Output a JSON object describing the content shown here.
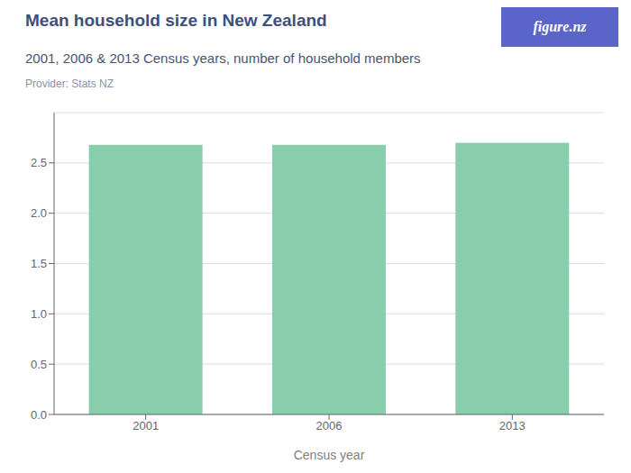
{
  "chart_data": {
    "type": "bar",
    "title": "Mean household size in New Zealand",
    "subtitle": "2001, 2006 & 2013 Census years, number of household members",
    "provider": "Provider: Stats NZ",
    "logo": "figure.nz",
    "xlabel": "Census year",
    "categories": [
      "2001",
      "2006",
      "2013"
    ],
    "values": [
      2.68,
      2.68,
      2.7
    ],
    "color": "#88cead",
    "ylim": [
      0,
      3.0
    ],
    "yticks": [
      {
        "value": 0,
        "label": "0.0"
      },
      0.5,
      {
        "value": 1,
        "label": "1.0"
      },
      1.5,
      {
        "value": 2,
        "label": "2.0"
      },
      2.5
    ],
    "grid": true
  }
}
